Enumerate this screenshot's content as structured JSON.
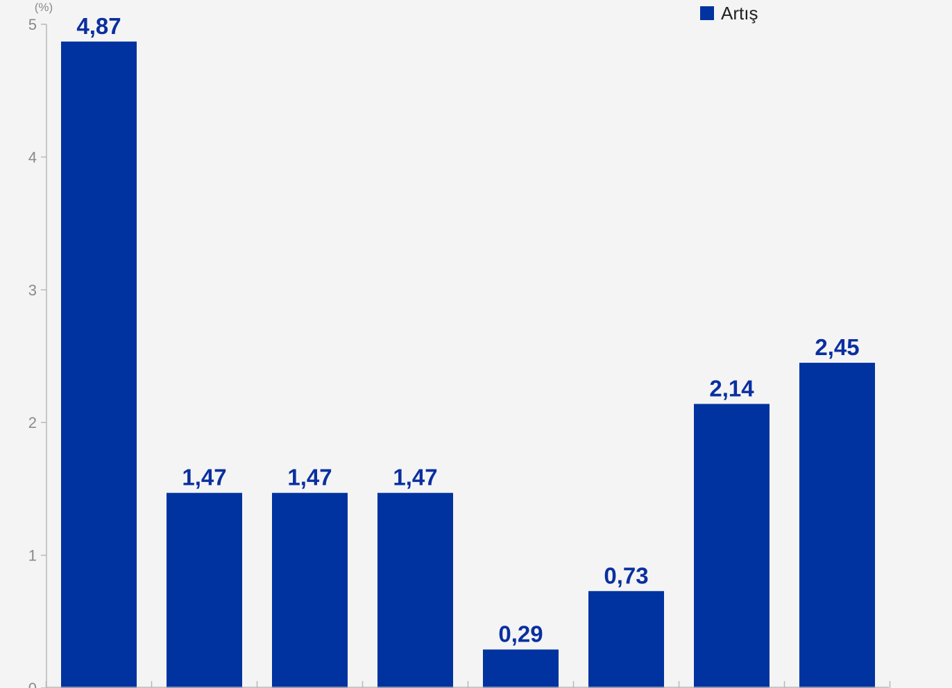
{
  "colors": {
    "bar": "#0033a0",
    "label": "#0a2fa0",
    "background": "#f4f4f4",
    "axis": "#b8b8b8"
  },
  "legend": {
    "label": "Artış",
    "placement": "top-right"
  },
  "chart_data": {
    "type": "bar",
    "ylabel": "(%)",
    "ylim": [
      0,
      5
    ],
    "yticks": [
      "0",
      "1",
      "2",
      "3",
      "4",
      "5"
    ],
    "grid": false,
    "categories": [
      "",
      "",
      "",
      "",
      "",
      "",
      "",
      ""
    ],
    "series": [
      {
        "name": "Artış",
        "values": [
          4.87,
          1.47,
          1.47,
          1.47,
          0.29,
          0.73,
          2.14,
          2.45
        ],
        "labels": [
          "4,87",
          "1,47",
          "1,47",
          "1,47",
          "0,29",
          "0,73",
          "2,14",
          "2,45"
        ]
      }
    ]
  }
}
